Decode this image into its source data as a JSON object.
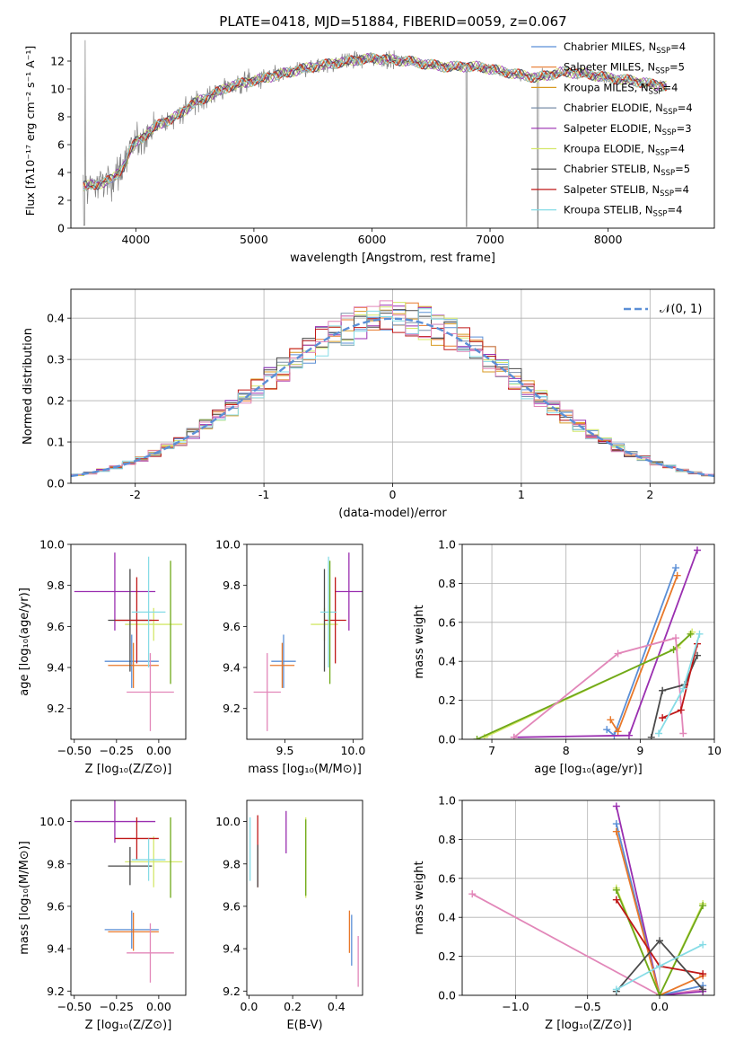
{
  "figure": {
    "title": "PLATE=0418, MJD=51884, FIBERID=0059, z=0.067"
  },
  "colors": {
    "Chabrier MILES": "#5b8fd6",
    "Salpeter MILES": "#e8782a",
    "Kroupa MILES": "#d89a22",
    "Chabrier ELODIE": "#7a8fa8",
    "Salpeter ELODIE": "#9a2fb0",
    "Kroupa ELODIE": "#d4e86a",
    "Chabrier STELIB": "#4a4a4a",
    "Salpeter STELIB": "#c01818",
    "Kroupa STELIB": "#86dce6",
    "data": "#808080",
    "normal": "#5b8fd6",
    "pink": "#e287b9",
    "olive": "#6fa81a"
  },
  "chart_data": [
    {
      "id": "spectrum",
      "type": "line",
      "xlabel": "wavelength [Angstrom, rest frame]",
      "ylabel": "Flux [fλ10⁻¹⁷ erg cm⁻² s⁻¹ A⁻¹]",
      "xlim": [
        3450,
        8900
      ],
      "ylim": [
        0,
        14
      ],
      "xticks": [
        4000,
        5000,
        6000,
        7000,
        8000
      ],
      "yticks": [
        0,
        2,
        4,
        6,
        8,
        10,
        12
      ],
      "legend_position": "top-right",
      "legend": [
        {
          "label": "Chabrier MILES, N",
          "sub": "SSP",
          "tail": "=4",
          "key": "Chabrier MILES"
        },
        {
          "label": "Salpeter MILES, N",
          "sub": "SSP",
          "tail": "=5",
          "key": "Salpeter MILES"
        },
        {
          "label": "Kroupa MILES, N",
          "sub": "SSP",
          "tail": "=4",
          "key": "Kroupa MILES"
        },
        {
          "label": "Chabrier ELODIE, N",
          "sub": "SSP",
          "tail": "=4",
          "key": "Chabrier ELODIE"
        },
        {
          "label": "Salpeter ELODIE, N",
          "sub": "SSP",
          "tail": "=3",
          "key": "Salpeter ELODIE"
        },
        {
          "label": "Kroupa ELODIE, N",
          "sub": "SSP",
          "tail": "=4",
          "key": "Kroupa ELODIE"
        },
        {
          "label": "Chabrier STELIB, N",
          "sub": "SSP",
          "tail": "=5",
          "key": "Chabrier STELIB"
        },
        {
          "label": "Salpeter STELIB, N",
          "sub": "SSP",
          "tail": "=4",
          "key": "Salpeter STELIB"
        },
        {
          "label": "Kroupa STELIB, N",
          "sub": "SSP",
          "tail": "=4",
          "key": "Kroupa STELIB"
        }
      ],
      "continuum": [
        [
          3550,
          3.0
        ],
        [
          3700,
          3.2
        ],
        [
          3800,
          3.5
        ],
        [
          3900,
          4.5
        ],
        [
          3950,
          5.5
        ],
        [
          4000,
          6.2
        ],
        [
          4100,
          6.8
        ],
        [
          4200,
          7.5
        ],
        [
          4300,
          7.8
        ],
        [
          4500,
          9.0
        ],
        [
          4800,
          10.2
        ],
        [
          5000,
          10.6
        ],
        [
          5200,
          11.0
        ],
        [
          5500,
          11.6
        ],
        [
          5800,
          12.0
        ],
        [
          6000,
          12.2
        ],
        [
          6300,
          12.0
        ],
        [
          6600,
          11.6
        ],
        [
          6900,
          11.6
        ],
        [
          7200,
          11.1
        ],
        [
          7400,
          10.8
        ],
        [
          7600,
          11.2
        ],
        [
          7800,
          11.1
        ],
        [
          8000,
          10.8
        ],
        [
          8200,
          10.6
        ],
        [
          8400,
          10.3
        ],
        [
          8500,
          10.2
        ]
      ]
    },
    {
      "id": "residuals",
      "type": "step",
      "xlabel": "(data-model)/error",
      "ylabel": "Normed distribution",
      "xlim": [
        -2.5,
        2.5
      ],
      "ylim": [
        0,
        0.47
      ],
      "xticks": [
        -2,
        -1,
        0,
        1,
        2
      ],
      "yticks": [
        0.0,
        0.1,
        0.2,
        0.3,
        0.4
      ],
      "legend_position": "top-right",
      "legend_label": "𝒩(0, 1)",
      "bin_width": 0.1
    },
    {
      "id": "age_vs_Z",
      "type": "errorbar",
      "xlabel": "Z [log₁₀(Z/Z⊙)]",
      "ylabel": "age  [log₁₀(age/yr)]",
      "xlim": [
        -0.52,
        0.16
      ],
      "ylim": [
        9.05,
        10.0
      ],
      "xticks": [
        -0.5,
        -0.25,
        0.0
      ],
      "xticklabels": [
        "−0.50",
        "−0.25",
        "0.00"
      ],
      "yticks": [
        9.2,
        9.4,
        9.6,
        9.8,
        10.0
      ],
      "points": [
        {
          "key": "Chabrier MILES",
          "x": -0.16,
          "xerr": 0.16,
          "y": 9.43,
          "yerr": 0.13
        },
        {
          "key": "Salpeter MILES",
          "x": -0.15,
          "xerr": 0.15,
          "y": 9.41,
          "yerr": 0.11
        },
        {
          "key": "Kroupa ELODIE",
          "x": -0.03,
          "xerr": 0.17,
          "y": 9.61,
          "yerr": 0.08
        },
        {
          "key": "Salpeter ELODIE",
          "x": -0.26,
          "xerr": 0.24,
          "y": 9.77,
          "yerr": 0.19
        },
        {
          "key": "Chabrier STELIB",
          "x": -0.17,
          "xerr": 0.13,
          "y": 9.63,
          "yerr": 0.25
        },
        {
          "key": "Salpeter STELIB",
          "x": -0.13,
          "xerr": 0.13,
          "y": 9.63,
          "yerr": 0.21
        },
        {
          "key": "Kroupa STELIB",
          "x": -0.06,
          "xerr": 0.1,
          "y": 9.67,
          "yerr": 0.27
        },
        {
          "key": "olive",
          "x": 0.07,
          "xerr": 0.0,
          "y": 9.62,
          "yerr": 0.3
        },
        {
          "key": "pink",
          "x": -0.05,
          "xerr": 0.14,
          "y": 9.28,
          "yerr": 0.19
        }
      ]
    },
    {
      "id": "age_vs_mass",
      "type": "errorbar",
      "xlabel": "mass [log₁₀(M/M⊙)]",
      "ylabel": "",
      "xlim": [
        9.22,
        10.07
      ],
      "ylim": [
        9.05,
        10.0
      ],
      "xticks": [
        9.5,
        10.0
      ],
      "xticklabels": [
        "9.5",
        "10.0"
      ],
      "yticks": [
        9.2,
        9.4,
        9.6,
        9.8,
        10.0
      ],
      "points": [
        {
          "key": "Chabrier MILES",
          "x": 9.49,
          "xerr": 0.09,
          "y": 9.43,
          "yerr": 0.13
        },
        {
          "key": "Salpeter MILES",
          "x": 9.48,
          "xerr": 0.09,
          "y": 9.41,
          "yerr": 0.11
        },
        {
          "key": "Kroupa ELODIE",
          "x": 9.79,
          "xerr": 0.1,
          "y": 9.61,
          "yerr": 0.08
        },
        {
          "key": "Salpeter ELODIE",
          "x": 9.97,
          "xerr": 0.1,
          "y": 9.77,
          "yerr": 0.19
        },
        {
          "key": "Chabrier STELIB",
          "x": 9.79,
          "xerr": 0.0,
          "y": 9.63,
          "yerr": 0.25
        },
        {
          "key": "Salpeter STELIB",
          "x": 9.87,
          "xerr": 0.08,
          "y": 9.63,
          "yerr": 0.21
        },
        {
          "key": "Kroupa STELIB",
          "x": 9.82,
          "xerr": 0.06,
          "y": 9.67,
          "yerr": 0.27
        },
        {
          "key": "olive",
          "x": 9.83,
          "xerr": 0.0,
          "y": 9.62,
          "yerr": 0.3
        },
        {
          "key": "pink",
          "x": 9.37,
          "xerr": 0.1,
          "y": 9.28,
          "yerr": 0.19
        }
      ]
    },
    {
      "id": "mass_weight_vs_age",
      "type": "line",
      "xlabel": "age  [log₁₀(age/yr)]",
      "ylabel": "mass weight",
      "xlim": [
        6.6,
        10.0
      ],
      "ylim": [
        0.0,
        1.0
      ],
      "xticks": [
        7,
        8,
        9,
        10
      ],
      "yticks": [
        0.0,
        0.2,
        0.4,
        0.6,
        0.8,
        1.0
      ],
      "series": [
        {
          "key": "Chabrier MILES",
          "x": [
            8.55,
            8.65,
            9.48
          ],
          "y": [
            0.05,
            0.02,
            0.88
          ]
        },
        {
          "key": "Salpeter MILES",
          "x": [
            8.6,
            8.7,
            9.5
          ],
          "y": [
            0.1,
            0.04,
            0.84
          ]
        },
        {
          "key": "Salpeter ELODIE",
          "x": [
            7.3,
            8.85,
            9.77
          ],
          "y": [
            0.01,
            0.02,
            0.97
          ]
        },
        {
          "key": "Kroupa ELODIE",
          "x": [
            6.9,
            9.5,
            9.7
          ],
          "y": [
            0.01,
            0.47,
            0.55
          ]
        },
        {
          "key": "olive",
          "x": [
            6.8,
            9.45,
            9.68
          ],
          "y": [
            0.0,
            0.46,
            0.54
          ]
        },
        {
          "key": "pink",
          "x": [
            7.3,
            8.7,
            9.48,
            9.58
          ],
          "y": [
            0.01,
            0.44,
            0.52,
            0.03
          ]
        },
        {
          "key": "Chabrier STELIB",
          "x": [
            9.15,
            9.3,
            9.6,
            9.77
          ],
          "y": [
            0.01,
            0.25,
            0.28,
            0.43
          ]
        },
        {
          "key": "Salpeter STELIB",
          "x": [
            9.3,
            9.55,
            9.77
          ],
          "y": [
            0.11,
            0.15,
            0.49
          ]
        },
        {
          "key": "Kroupa STELIB",
          "x": [
            9.25,
            9.58,
            9.8
          ],
          "y": [
            0.03,
            0.26,
            0.54
          ]
        }
      ]
    },
    {
      "id": "mass_vs_Z",
      "type": "errorbar",
      "xlabel": "Z [log₁₀(Z/Z⊙)]",
      "ylabel": "mass [log₁₀(M/M⊙)]",
      "xlim": [
        -0.52,
        0.16
      ],
      "ylim": [
        9.18,
        10.1
      ],
      "xticks": [
        -0.5,
        -0.25,
        0.0
      ],
      "xticklabels": [
        "−0.50",
        "−0.25",
        "0.00"
      ],
      "yticks": [
        9.2,
        9.4,
        9.6,
        9.8,
        10.0
      ],
      "points": [
        {
          "key": "Chabrier MILES",
          "x": -0.16,
          "xerr": 0.16,
          "y": 9.49,
          "yerr": 0.09
        },
        {
          "key": "Salpeter MILES",
          "x": -0.15,
          "xerr": 0.15,
          "y": 9.48,
          "yerr": 0.09
        },
        {
          "key": "Kroupa ELODIE",
          "x": -0.03,
          "xerr": 0.17,
          "y": 9.81,
          "yerr": 0.12
        },
        {
          "key": "Salpeter ELODIE",
          "x": -0.26,
          "xerr": 0.24,
          "y": 10.0,
          "yerr": 0.1
        },
        {
          "key": "Chabrier STELIB",
          "x": -0.17,
          "xerr": 0.13,
          "y": 9.79,
          "yerr": 0.09
        },
        {
          "key": "Salpeter STELIB",
          "x": -0.13,
          "xerr": 0.13,
          "y": 9.92,
          "yerr": 0.1
        },
        {
          "key": "Kroupa STELIB",
          "x": -0.06,
          "xerr": 0.1,
          "y": 9.82,
          "yerr": 0.1
        },
        {
          "key": "olive",
          "x": 0.07,
          "xerr": 0.0,
          "y": 9.83,
          "yerr": 0.19
        },
        {
          "key": "pink",
          "x": -0.05,
          "xerr": 0.14,
          "y": 9.38,
          "yerr": 0.14
        }
      ]
    },
    {
      "id": "mass_vs_ebv",
      "type": "errorbar",
      "xlabel": "E(B-V)",
      "ylabel": "",
      "xlim": [
        -0.01,
        0.52
      ],
      "ylim": [
        9.18,
        10.1
      ],
      "xticks": [
        0.0,
        0.2,
        0.4
      ],
      "xticklabels": [
        "0.0",
        "0.2",
        "0.4"
      ],
      "yticks": [
        9.2,
        9.4,
        9.6,
        9.8,
        10.0
      ],
      "points": [
        {
          "key": "Kroupa STELIB",
          "x": 0.005,
          "xerr": 0.0,
          "y": 9.87,
          "yerr": 0.15
        },
        {
          "key": "Salpeter STELIB",
          "x": 0.04,
          "xerr": 0.0,
          "y": 9.86,
          "yerr": 0.17
        },
        {
          "key": "Chabrier STELIB",
          "x": 0.04,
          "xerr": 0.0,
          "y": 9.79,
          "yerr": 0.1
        },
        {
          "key": "Salpeter ELODIE",
          "x": 0.17,
          "xerr": 0.0,
          "y": 9.95,
          "yerr": 0.1
        },
        {
          "key": "Kroupa ELODIE",
          "x": 0.26,
          "xerr": 0.0,
          "y": 9.83,
          "yerr": 0.19
        },
        {
          "key": "olive",
          "x": 0.26,
          "xerr": 0.0,
          "y": 9.83,
          "yerr": 0.18
        },
        {
          "key": "Salpeter MILES",
          "x": 0.46,
          "xerr": 0.0,
          "y": 9.48,
          "yerr": 0.1
        },
        {
          "key": "Chabrier MILES",
          "x": 0.47,
          "xerr": 0.0,
          "y": 9.44,
          "yerr": 0.12
        },
        {
          "key": "pink",
          "x": 0.5,
          "xerr": 0.0,
          "y": 9.34,
          "yerr": 0.12
        }
      ]
    },
    {
      "id": "mass_weight_vs_Z",
      "type": "line",
      "xlabel": "Z [log₁₀(Z/Z⊙)]",
      "ylabel": "mass weight",
      "xlim": [
        -1.37,
        0.38
      ],
      "ylim": [
        0.0,
        1.0
      ],
      "xticks": [
        -1.0,
        -0.5,
        0.0
      ],
      "xticklabels": [
        "−1.0",
        "−0.5",
        "0.0"
      ],
      "yticks": [
        0.0,
        0.2,
        0.4,
        0.6,
        0.8,
        1.0
      ],
      "series": [
        {
          "key": "pink",
          "x": [
            -1.3,
            0.0,
            0.3
          ],
          "y": [
            0.52,
            0.0,
            0.03
          ]
        },
        {
          "key": "Salpeter ELODIE",
          "x": [
            -0.3,
            0.0,
            0.3
          ],
          "y": [
            0.97,
            0.0,
            0.02
          ]
        },
        {
          "key": "Chabrier MILES",
          "x": [
            -0.3,
            0.0,
            0.3
          ],
          "y": [
            0.88,
            0.0,
            0.05
          ]
        },
        {
          "key": "Salpeter MILES",
          "x": [
            -0.3,
            0.0,
            0.3
          ],
          "y": [
            0.84,
            0.0,
            0.1
          ]
        },
        {
          "key": "Kroupa ELODIE",
          "x": [
            -0.3,
            0.0,
            0.3
          ],
          "y": [
            0.55,
            0.0,
            0.47
          ]
        },
        {
          "key": "olive",
          "x": [
            -0.3,
            0.0,
            0.3
          ],
          "y": [
            0.54,
            0.0,
            0.46
          ]
        },
        {
          "key": "Salpeter STELIB",
          "x": [
            -0.3,
            0.0,
            0.3
          ],
          "y": [
            0.49,
            0.15,
            0.11
          ]
        },
        {
          "key": "Chabrier STELIB",
          "x": [
            -0.3,
            0.0,
            0.3
          ],
          "y": [
            0.02,
            0.28,
            0.03
          ]
        },
        {
          "key": "Kroupa STELIB",
          "x": [
            -0.3,
            0.0,
            0.3
          ],
          "y": [
            0.03,
            0.15,
            0.26
          ]
        }
      ]
    }
  ]
}
